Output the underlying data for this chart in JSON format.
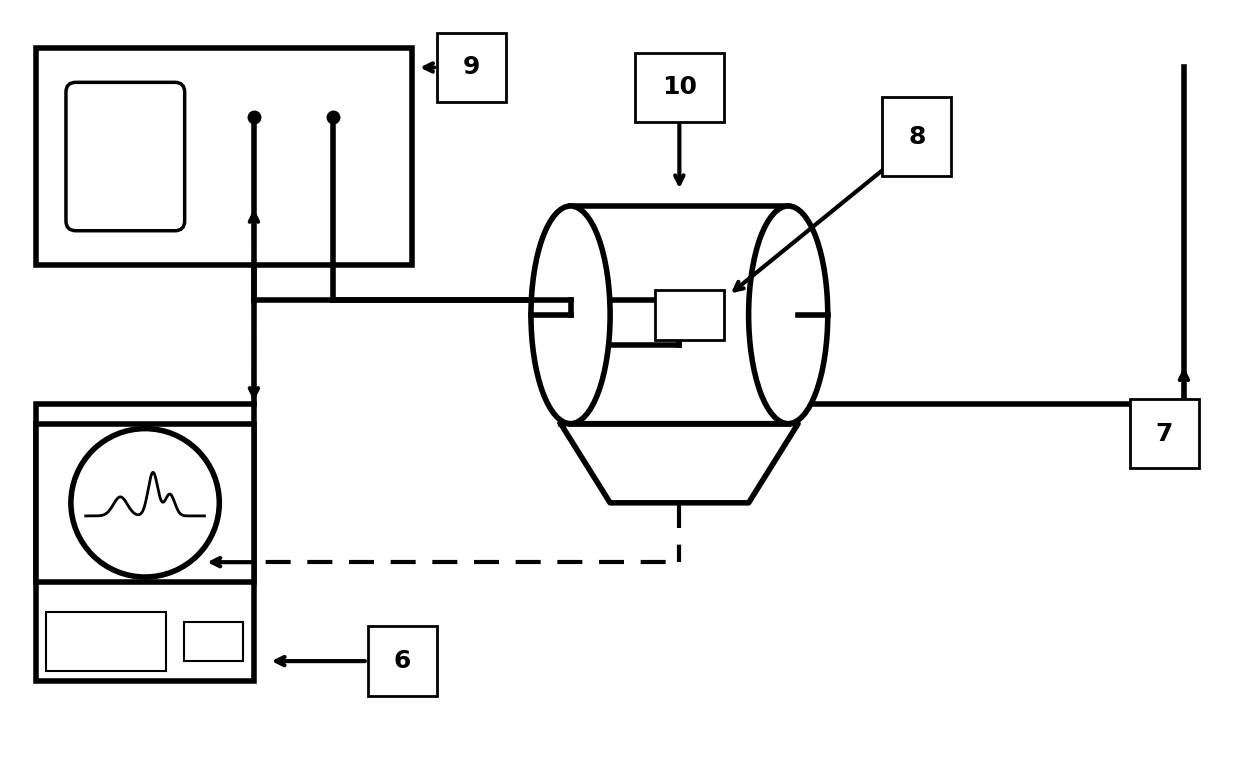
{
  "bg_color": "#ffffff",
  "lw": 3.0,
  "tlw": 4.0,
  "fig_width": 12.4,
  "fig_height": 7.84,
  "dpi": 100
}
